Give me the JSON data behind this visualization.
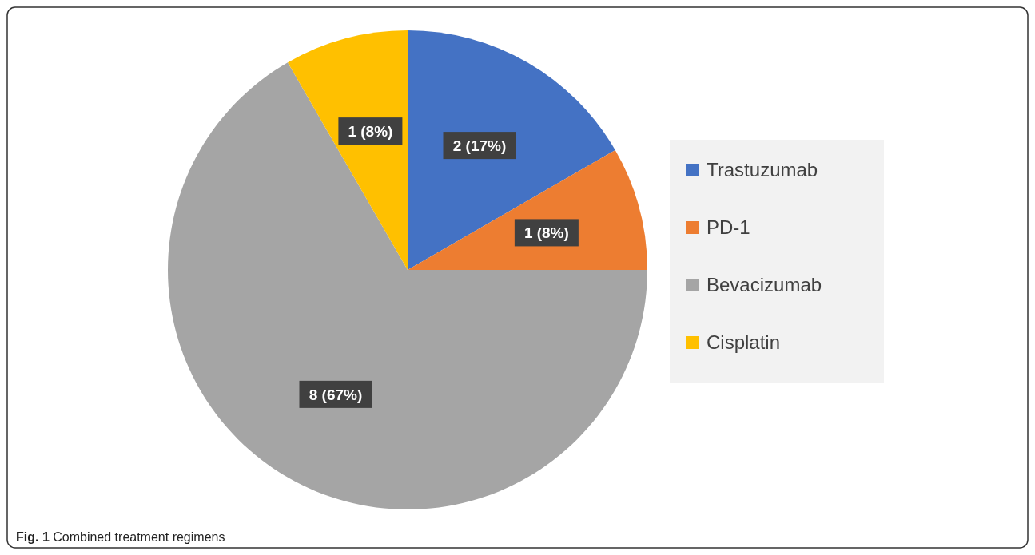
{
  "chart_data": {
    "type": "pie",
    "categories": [
      "Trastuzumab",
      "PD-1",
      "Bevacizumab",
      "Cisplatin"
    ],
    "values": [
      2,
      1,
      8,
      1
    ],
    "colors": [
      "#4472c4",
      "#ed7d31",
      "#a5a5a5",
      "#ffc000"
    ],
    "value_labels": [
      "2 (17%)",
      "1 (8%)",
      "8 (67%)",
      "1 (8%)"
    ],
    "legend": "right",
    "annotations": [
      "Fig. 1 Combined treatment regimens"
    ]
  }
}
